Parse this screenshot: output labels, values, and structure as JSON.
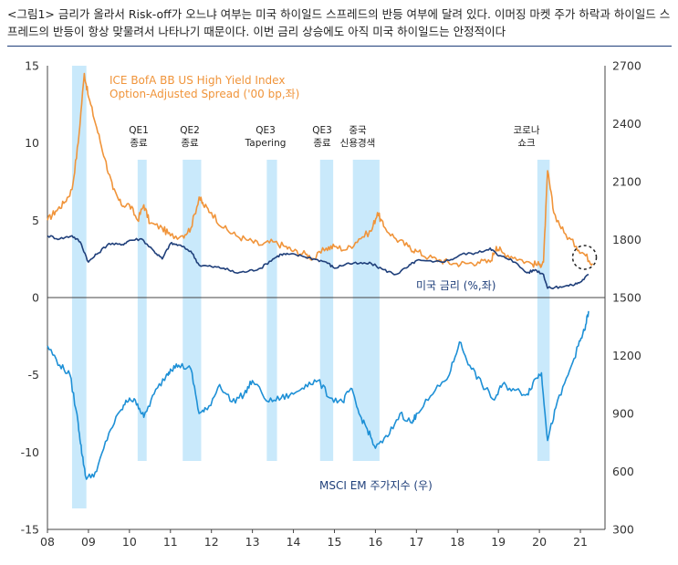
{
  "caption": "<그림1> 금리가 올라서 Risk-off가 오느냐 여부는 미국 하이일드 스프레드의 반등 여부에 달려 있다. 이머징 마켓 주가 하락과 하이일드 스프레드의 반등이 항상 맞물려서 나타나기 때문이다. 이번 금리 상승에도 아직 미국 하이일드는 안정적이다",
  "chart_data": {
    "type": "line",
    "x": {
      "range": [
        2008.0,
        2021.6
      ],
      "ticks": [
        2008,
        2009,
        2010,
        2011,
        2012,
        2013,
        2014,
        2015,
        2016,
        2017,
        2018,
        2019,
        2020,
        2021
      ],
      "tick_labels": [
        "08",
        "09",
        "10",
        "11",
        "12",
        "13",
        "14",
        "15",
        "16",
        "17",
        "18",
        "19",
        "20",
        "21"
      ]
    },
    "y_left": {
      "range": [
        -15,
        15
      ],
      "ticks": [
        15,
        10,
        5,
        0,
        -5,
        -10,
        -15
      ],
      "tick_labels": [
        "15",
        "10",
        "5",
        "0",
        "-5",
        "-10",
        "-15"
      ]
    },
    "y_right": {
      "range": [
        300,
        2700
      ],
      "ticks": [
        2700,
        2400,
        2100,
        1800,
        1500,
        1200,
        900,
        600,
        300
      ],
      "tick_labels": [
        "2700",
        "2400",
        "2100",
        "1800",
        "1500",
        "1200",
        "900",
        "600",
        "300"
      ]
    },
    "series": [
      {
        "name": "ICE BofA BB  US High Yield Index Option-Adjusted Spread ('00 bp,좌)",
        "label_line1": "ICE BofA BB  US High Yield Index",
        "label_line2": "Option-Adjusted Spread ('00 bp,좌)",
        "axis": "left",
        "color": "#f0943a",
        "points": [
          [
            2008.0,
            5.0
          ],
          [
            2008.2,
            5.6
          ],
          [
            2008.4,
            6.1
          ],
          [
            2008.6,
            7.0
          ],
          [
            2008.75,
            10.0
          ],
          [
            2008.9,
            14.5
          ],
          [
            2009.0,
            13.0
          ],
          [
            2009.2,
            11.0
          ],
          [
            2009.4,
            9.0
          ],
          [
            2009.6,
            7.0
          ],
          [
            2009.8,
            6.0
          ],
          [
            2010.0,
            6.0
          ],
          [
            2010.2,
            5.0
          ],
          [
            2010.35,
            6.0
          ],
          [
            2010.5,
            4.8
          ],
          [
            2010.8,
            4.5
          ],
          [
            2011.0,
            4.0
          ],
          [
            2011.3,
            4.0
          ],
          [
            2011.5,
            4.5
          ],
          [
            2011.7,
            6.5
          ],
          [
            2011.8,
            6.0
          ],
          [
            2012.0,
            5.5
          ],
          [
            2012.3,
            4.5
          ],
          [
            2012.6,
            4.0
          ],
          [
            2012.9,
            3.7
          ],
          [
            2013.2,
            3.4
          ],
          [
            2013.5,
            3.6
          ],
          [
            2013.8,
            3.3
          ],
          [
            2014.0,
            3.0
          ],
          [
            2014.3,
            2.8
          ],
          [
            2014.5,
            2.5
          ],
          [
            2014.8,
            3.2
          ],
          [
            2015.0,
            3.3
          ],
          [
            2015.3,
            3.1
          ],
          [
            2015.6,
            3.8
          ],
          [
            2015.9,
            4.3
          ],
          [
            2016.05,
            5.5
          ],
          [
            2016.2,
            4.6
          ],
          [
            2016.5,
            3.8
          ],
          [
            2016.8,
            3.3
          ],
          [
            2017.0,
            3.0
          ],
          [
            2017.3,
            2.6
          ],
          [
            2017.6,
            2.4
          ],
          [
            2017.9,
            2.2
          ],
          [
            2018.2,
            2.2
          ],
          [
            2018.5,
            2.3
          ],
          [
            2018.8,
            2.3
          ],
          [
            2018.95,
            3.3
          ],
          [
            2019.1,
            2.9
          ],
          [
            2019.4,
            2.6
          ],
          [
            2019.8,
            2.2
          ],
          [
            2020.0,
            2.1
          ],
          [
            2020.1,
            2.3
          ],
          [
            2020.2,
            8.2
          ],
          [
            2020.35,
            5.5
          ],
          [
            2020.6,
            4.2
          ],
          [
            2020.9,
            3.3
          ],
          [
            2021.1,
            2.8
          ],
          [
            2021.3,
            2.2
          ]
        ]
      },
      {
        "name": "미국 금리 (%,좌)",
        "axis": "left",
        "color": "#1f3f7a",
        "points": [
          [
            2008.0,
            4.0
          ],
          [
            2008.3,
            3.8
          ],
          [
            2008.6,
            4.0
          ],
          [
            2008.8,
            3.6
          ],
          [
            2009.0,
            2.3
          ],
          [
            2009.2,
            2.8
          ],
          [
            2009.5,
            3.5
          ],
          [
            2009.8,
            3.4
          ],
          [
            2010.0,
            3.7
          ],
          [
            2010.3,
            3.8
          ],
          [
            2010.6,
            3.0
          ],
          [
            2010.8,
            2.5
          ],
          [
            2011.0,
            3.5
          ],
          [
            2011.2,
            3.4
          ],
          [
            2011.5,
            3.0
          ],
          [
            2011.7,
            2.1
          ],
          [
            2012.0,
            2.0
          ],
          [
            2012.3,
            1.9
          ],
          [
            2012.6,
            1.6
          ],
          [
            2012.9,
            1.7
          ],
          [
            2013.2,
            1.9
          ],
          [
            2013.5,
            2.5
          ],
          [
            2013.7,
            2.8
          ],
          [
            2013.9,
            2.8
          ],
          [
            2014.2,
            2.7
          ],
          [
            2014.5,
            2.5
          ],
          [
            2014.8,
            2.3
          ],
          [
            2015.0,
            1.9
          ],
          [
            2015.3,
            2.2
          ],
          [
            2015.6,
            2.2
          ],
          [
            2015.9,
            2.2
          ],
          [
            2016.2,
            1.8
          ],
          [
            2016.5,
            1.5
          ],
          [
            2016.8,
            2.0
          ],
          [
            2017.0,
            2.4
          ],
          [
            2017.4,
            2.3
          ],
          [
            2017.8,
            2.4
          ],
          [
            2018.1,
            2.8
          ],
          [
            2018.5,
            2.9
          ],
          [
            2018.8,
            3.2
          ],
          [
            2019.0,
            2.7
          ],
          [
            2019.3,
            2.5
          ],
          [
            2019.7,
            1.6
          ],
          [
            2019.9,
            1.8
          ],
          [
            2020.1,
            1.5
          ],
          [
            2020.2,
            0.6
          ],
          [
            2020.5,
            0.7
          ],
          [
            2020.8,
            0.8
          ],
          [
            2021.0,
            1.0
          ],
          [
            2021.2,
            1.5
          ]
        ]
      },
      {
        "name": "MSCI EM 주가지수 (우)",
        "axis": "right",
        "color": "#1e90d6",
        "points": [
          [
            2008.0,
            1250
          ],
          [
            2008.3,
            1150
          ],
          [
            2008.55,
            1100
          ],
          [
            2008.75,
            850
          ],
          [
            2008.85,
            680
          ],
          [
            2008.95,
            560
          ],
          [
            2009.2,
            600
          ],
          [
            2009.5,
            800
          ],
          [
            2009.8,
            920
          ],
          [
            2010.0,
            980
          ],
          [
            2010.2,
            950
          ],
          [
            2010.35,
            880
          ],
          [
            2010.6,
            1000
          ],
          [
            2010.9,
            1100
          ],
          [
            2011.0,
            1130
          ],
          [
            2011.2,
            1150
          ],
          [
            2011.5,
            1130
          ],
          [
            2011.7,
            900
          ],
          [
            2011.9,
            920
          ],
          [
            2012.2,
            1050
          ],
          [
            2012.5,
            960
          ],
          [
            2012.8,
            1000
          ],
          [
            2013.0,
            1070
          ],
          [
            2013.4,
            960
          ],
          [
            2013.7,
            980
          ],
          [
            2014.0,
            1000
          ],
          [
            2014.3,
            1050
          ],
          [
            2014.6,
            1070
          ],
          [
            2014.9,
            980
          ],
          [
            2015.2,
            960
          ],
          [
            2015.4,
            1030
          ],
          [
            2015.6,
            900
          ],
          [
            2015.8,
            820
          ],
          [
            2016.0,
            720
          ],
          [
            2016.3,
            780
          ],
          [
            2016.6,
            900
          ],
          [
            2016.9,
            850
          ],
          [
            2017.0,
            900
          ],
          [
            2017.4,
            1000
          ],
          [
            2017.8,
            1100
          ],
          [
            2018.05,
            1270
          ],
          [
            2018.3,
            1150
          ],
          [
            2018.6,
            1050
          ],
          [
            2018.9,
            970
          ],
          [
            2019.1,
            1050
          ],
          [
            2019.4,
            1020
          ],
          [
            2019.7,
            1000
          ],
          [
            2019.9,
            1080
          ],
          [
            2020.05,
            1110
          ],
          [
            2020.2,
            760
          ],
          [
            2020.4,
            930
          ],
          [
            2020.7,
            1100
          ],
          [
            2020.95,
            1250
          ],
          [
            2021.1,
            1330
          ],
          [
            2021.2,
            1430
          ]
        ]
      }
    ],
    "event_bands": [
      {
        "start": 2008.6,
        "end": 2008.95,
        "label": ""
      },
      {
        "start": 2010.2,
        "end": 2010.42,
        "label": "QE1 종료"
      },
      {
        "start": 2011.3,
        "end": 2011.75,
        "label": "QE2 종료"
      },
      {
        "start": 2013.35,
        "end": 2013.6,
        "label": "QE3 Tapering"
      },
      {
        "start": 2014.65,
        "end": 2014.97,
        "label": "QE3 종료"
      },
      {
        "start": 2015.45,
        "end": 2016.1,
        "label": "중국 신용경색"
      },
      {
        "start": 2019.95,
        "end": 2020.25,
        "label": "코로나 쇼크"
      }
    ],
    "annotations": [
      {
        "line1": "QE1",
        "line2": "종료"
      },
      {
        "line1": "QE2",
        "line2": "종료"
      },
      {
        "line1": "QE3",
        "line2": "Tapering"
      },
      {
        "line1": "QE3",
        "line2": "종료"
      },
      {
        "line1": "중국",
        "line2": "신용경색"
      },
      {
        "line1": "코로나",
        "line2": "쇼크"
      }
    ],
    "inline_labels": {
      "spread_line1": "ICE BofA BB  US High Yield Index",
      "spread_line2": "Option-Adjusted Spread ('00 bp,좌)",
      "rate": "미국 금리 (%,좌)",
      "msci": "MSCI EM 주가지수 (우)"
    },
    "highlight_circle": {
      "x": 2021.1,
      "y": 2.6
    }
  }
}
